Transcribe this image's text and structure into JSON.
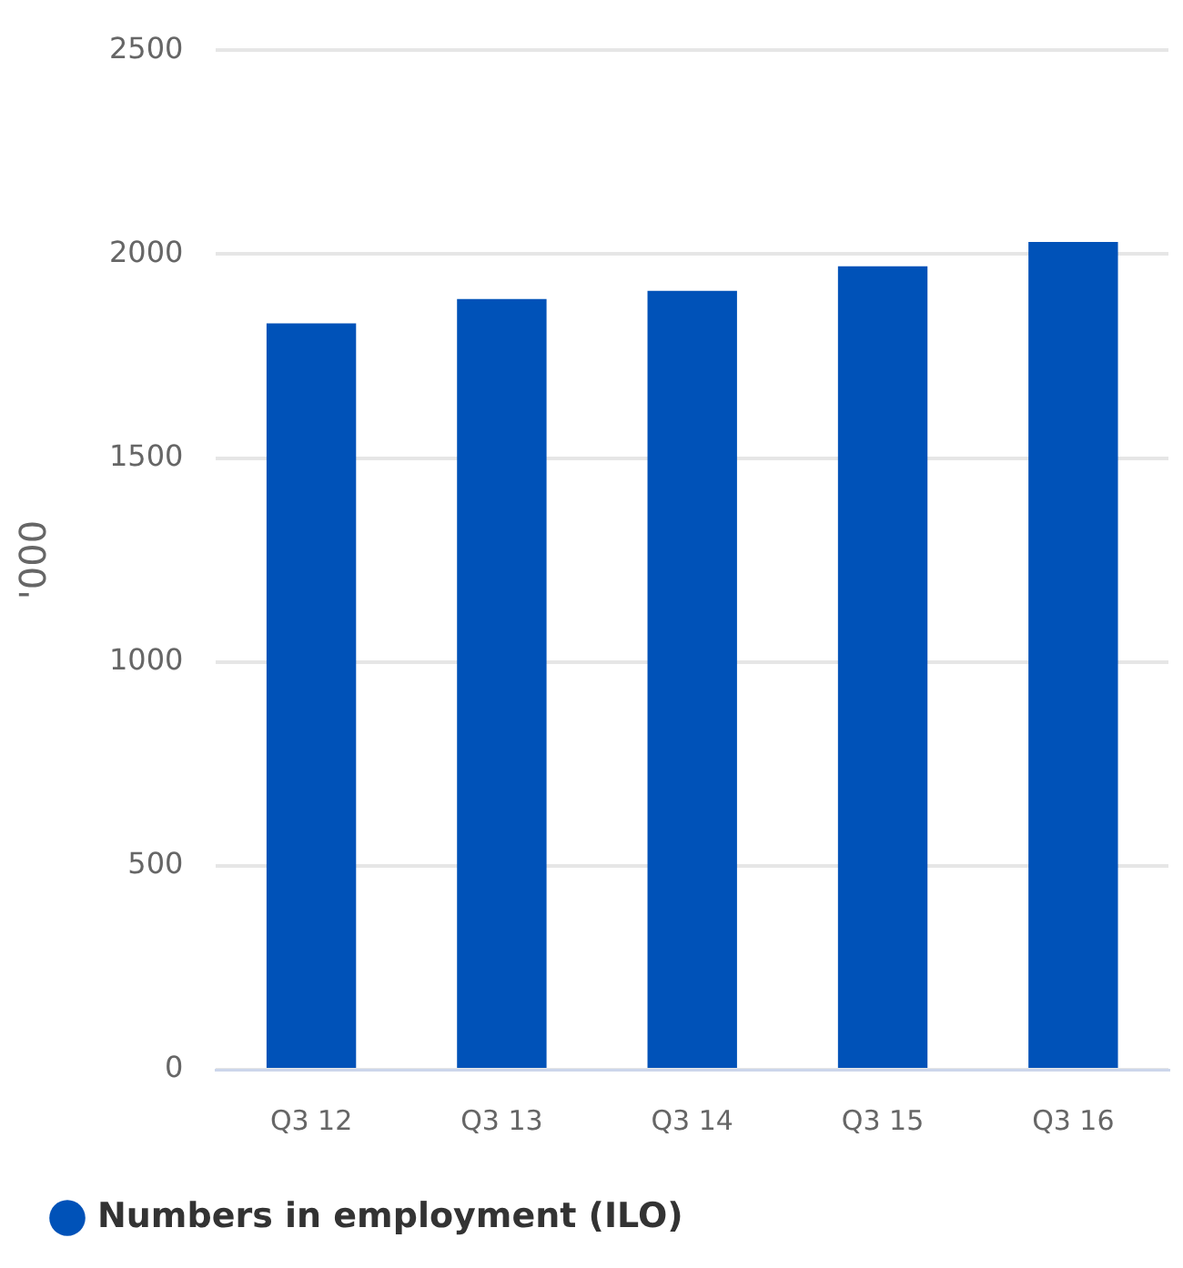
{
  "chart_data": {
    "type": "bar",
    "ylabel": "'000",
    "categories": [
      "Q3 12",
      "Q3 13",
      "Q3 14",
      "Q3 15",
      "Q3 16"
    ],
    "series": [
      {
        "name": "Numbers in employment (ILO)",
        "color": "#0052b8",
        "values": [
          1830,
          1890,
          1910,
          1970,
          2030
        ]
      }
    ],
    "ylim": [
      0,
      2500
    ],
    "yticks": [
      0,
      500,
      1000,
      1500,
      2000,
      2500
    ],
    "grid": "y",
    "legend": "bottom"
  }
}
